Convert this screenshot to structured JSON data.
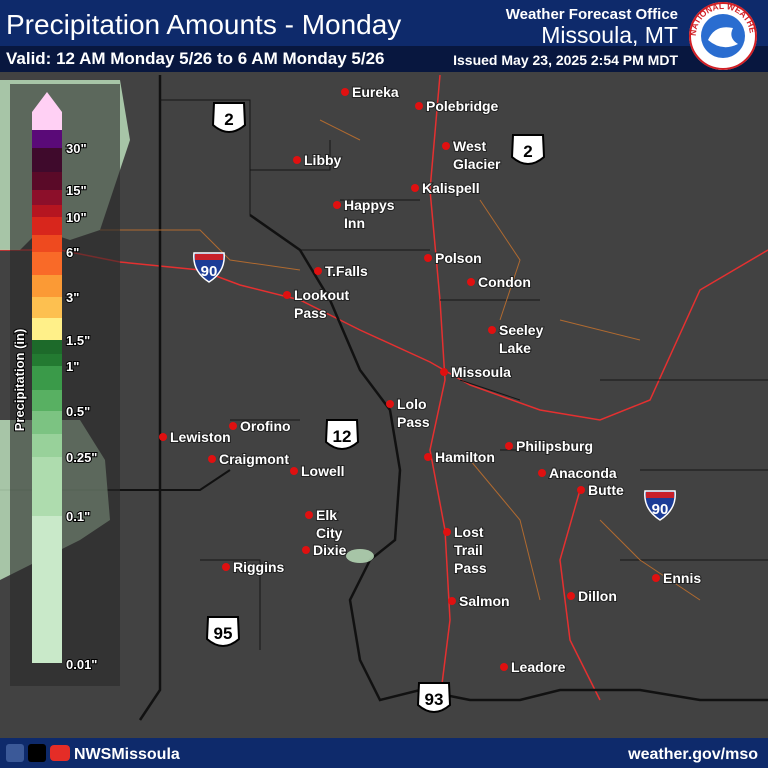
{
  "header": {
    "title": "Precipitation Amounts - Monday",
    "valid": "Valid: 12 AM Monday 5/26 to 6 AM Monday 5/26",
    "office_label": "Weather Forecast Office",
    "office": "Missoula, MT",
    "issued": "Issued May 23, 2025 2:54 PM MDT",
    "logo_text": "NATIONAL WEATHER SERVICE"
  },
  "legend": {
    "title": "Precipitation (in)",
    "labels": [
      "30\"",
      "15\"",
      "10\"",
      "6\"",
      "3\"",
      "1.5\"",
      "1\"",
      "0.5\"",
      "0.25\"",
      "0.1\"",
      "0.01\""
    ]
  },
  "cities": [
    {
      "label": [
        "Eureka"
      ]
    },
    {
      "label": [
        "Polebridge"
      ]
    },
    {
      "label": [
        "West",
        "Glacier"
      ]
    },
    {
      "label": [
        "Libby"
      ]
    },
    {
      "label": [
        "Kalispell"
      ]
    },
    {
      "label": [
        "Happys",
        "Inn"
      ]
    },
    {
      "label": [
        "T.Falls"
      ]
    },
    {
      "label": [
        "Polson"
      ]
    },
    {
      "label": [
        "Condon"
      ]
    },
    {
      "label": [
        "Lookout",
        "Pass"
      ]
    },
    {
      "label": [
        "Seeley",
        "Lake"
      ]
    },
    {
      "label": [
        "Missoula"
      ]
    },
    {
      "label": [
        "Lolo",
        "Pass"
      ]
    },
    {
      "label": [
        "Orofino"
      ]
    },
    {
      "label": [
        "Lewiston"
      ]
    },
    {
      "label": [
        "Philipsburg"
      ]
    },
    {
      "label": [
        "Craigmont"
      ]
    },
    {
      "label": [
        "Hamilton"
      ]
    },
    {
      "label": [
        "Lowell"
      ]
    },
    {
      "label": [
        "Anaconda"
      ]
    },
    {
      "label": [
        "Butte"
      ]
    },
    {
      "label": [
        "Elk",
        "City"
      ]
    },
    {
      "label": [
        "Dixie"
      ]
    },
    {
      "label": [
        "Lost",
        "Trail",
        "Pass"
      ]
    },
    {
      "label": [
        "Riggins"
      ]
    },
    {
      "label": [
        "Ennis"
      ]
    },
    {
      "label": [
        "Dillon"
      ]
    },
    {
      "label": [
        "Salmon"
      ]
    },
    {
      "label": [
        "Leadore"
      ]
    }
  ],
  "highways": [
    "2",
    "2",
    "90",
    "12",
    "90",
    "95",
    "93"
  ],
  "footer": {
    "handle": "NWSMissoula",
    "url": "weather.gov/mso"
  }
}
